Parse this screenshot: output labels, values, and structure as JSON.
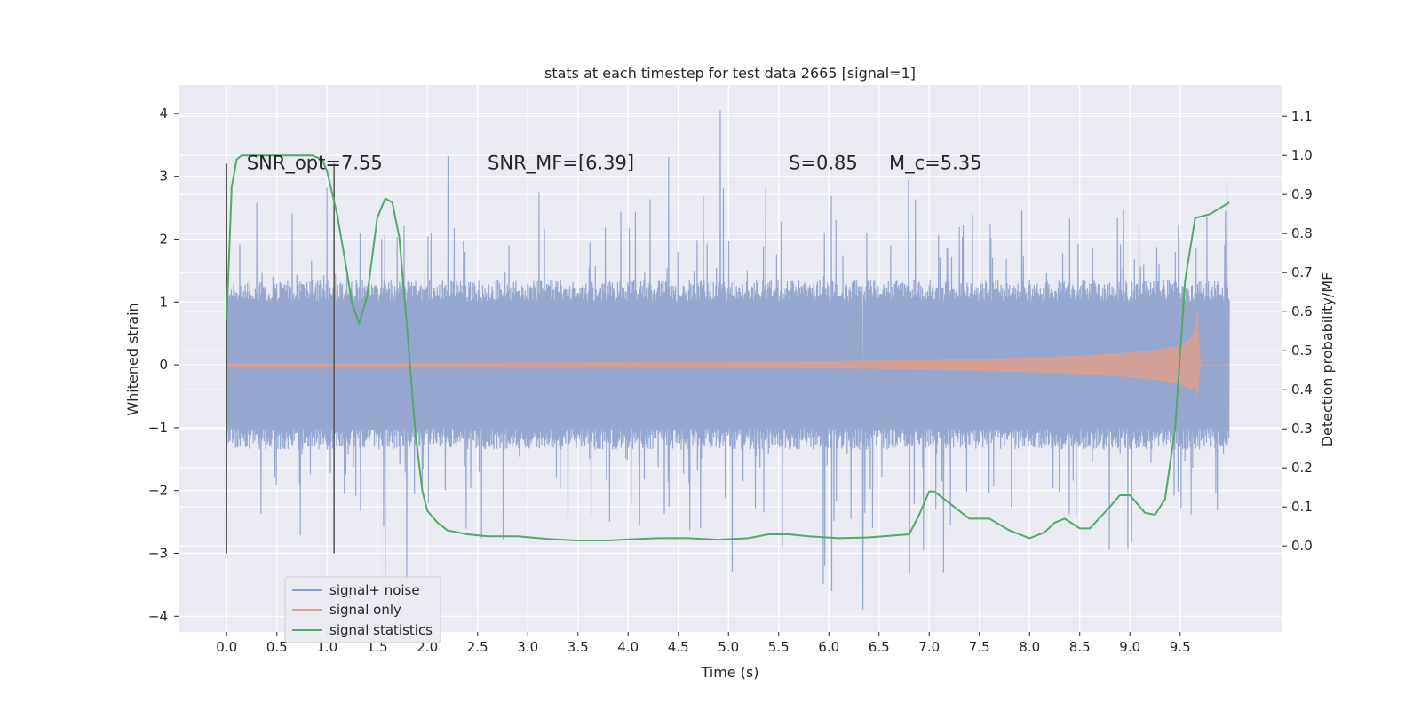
{
  "chart_data": {
    "type": "line",
    "title": "stats at each timestep for test data 2665 [signal=1]",
    "xlabel": "Time (s)",
    "ylabel": "Whitened strain",
    "y2label": "Detection probability/MF",
    "xlim": [
      -0.48,
      10.52
    ],
    "ylim": [
      -4.25,
      4.45
    ],
    "y2lim": [
      -0.22,
      1.18
    ],
    "xticks": [
      0.0,
      0.5,
      1.0,
      1.5,
      2.0,
      2.5,
      3.0,
      3.5,
      4.0,
      4.5,
      5.0,
      5.5,
      6.0,
      6.5,
      7.0,
      7.5,
      8.0,
      8.5,
      9.0,
      9.5
    ],
    "xtick_labels": [
      "0.0",
      "0.5",
      "1.0",
      "1.5",
      "2.0",
      "2.5",
      "3.0",
      "3.5",
      "4.0",
      "4.5",
      "5.0",
      "5.5",
      "6.0",
      "6.5",
      "7.0",
      "7.5",
      "8.0",
      "8.5",
      "9.0",
      "9.5"
    ],
    "yticks": [
      4,
      3,
      2,
      1,
      0,
      -1,
      -2,
      -3,
      -4
    ],
    "ytick_labels": [
      "4",
      "3",
      "2",
      "1",
      "0",
      "−1",
      "−2",
      "−3",
      "−4"
    ],
    "y2ticks": [
      1.1,
      1.0,
      0.9,
      0.8,
      0.7,
      0.6,
      0.5,
      0.4,
      0.3,
      0.2,
      0.1,
      0.0
    ],
    "y2tick_labels": [
      "1.1",
      "1.0",
      "0.9",
      "0.8",
      "0.7",
      "0.6",
      "0.5",
      "0.4",
      "0.3",
      "0.2",
      "0.1",
      "0.0"
    ],
    "grid": true,
    "legend_position": "lower-left",
    "annotations": [
      {
        "id": "snr-opt",
        "text": "SNR_opt=7.55",
        "x": 0.2,
        "y": 3.2
      },
      {
        "id": "snr-mf",
        "text": "SNR_MF=[6.39]",
        "x": 2.6,
        "y": 3.2
      },
      {
        "id": "s-value",
        "text": "S=0.85",
        "x": 5.6,
        "y": 3.2
      },
      {
        "id": "mc-value",
        "text": "M_c=5.35",
        "x": 6.6,
        "y": 3.2
      }
    ],
    "vertical_markers": [
      {
        "x": 0.0,
        "y_from": -3.0,
        "y_to": 3.2
      },
      {
        "x": 1.07,
        "y_from": -3.0,
        "y_to": 3.2
      }
    ],
    "series": [
      {
        "name": "signal+ noise",
        "color": "#8da0cb",
        "kind": "noise-band",
        "x_range": [
          0.0,
          9.99
        ],
        "band": [
          -1.35,
          1.35
        ],
        "spike_max": 4.05,
        "spike_min": -3.9
      },
      {
        "name": "signal only",
        "color": "#dd9f8e",
        "kind": "chirp-envelope",
        "x": [
          0.0,
          1.0,
          2.0,
          3.0,
          4.0,
          5.0,
          6.0,
          7.0,
          7.5,
          8.0,
          8.5,
          9.0,
          9.3,
          9.5,
          9.6,
          9.65,
          9.67,
          9.7,
          9.99
        ],
        "envelope": [
          0.02,
          0.02,
          0.025,
          0.03,
          0.035,
          0.04,
          0.05,
          0.07,
          0.09,
          0.11,
          0.14,
          0.19,
          0.24,
          0.3,
          0.4,
          0.55,
          0.85,
          0.0,
          0.0
        ]
      },
      {
        "name": "signal statistics",
        "color": "#55a868",
        "kind": "line",
        "x": [
          0.0,
          0.05,
          0.1,
          0.15,
          0.2,
          0.3,
          0.5,
          0.7,
          0.85,
          0.95,
          1.0,
          1.1,
          1.2,
          1.25,
          1.32,
          1.4,
          1.5,
          1.58,
          1.65,
          1.72,
          1.8,
          1.88,
          1.95,
          2.0,
          2.1,
          2.2,
          2.4,
          2.6,
          2.9,
          3.2,
          3.5,
          3.8,
          4.1,
          4.3,
          4.6,
          4.9,
          5.2,
          5.4,
          5.6,
          5.8,
          6.1,
          6.4,
          6.8,
          6.9,
          7.0,
          7.05,
          7.2,
          7.4,
          7.6,
          7.8,
          8.0,
          8.15,
          8.25,
          8.35,
          8.5,
          8.6,
          8.8,
          8.9,
          9.0,
          9.15,
          9.25,
          9.35,
          9.45,
          9.55,
          9.65,
          9.8,
          9.99
        ],
        "values": [
          0.58,
          0.92,
          0.99,
          1.0,
          1.0,
          1.0,
          1.0,
          1.0,
          1.0,
          0.99,
          0.96,
          0.85,
          0.7,
          0.62,
          0.57,
          0.64,
          0.84,
          0.89,
          0.88,
          0.79,
          0.55,
          0.29,
          0.14,
          0.09,
          0.06,
          0.04,
          0.03,
          0.025,
          0.025,
          0.018,
          0.014,
          0.014,
          0.018,
          0.02,
          0.02,
          0.016,
          0.02,
          0.03,
          0.03,
          0.025,
          0.02,
          0.022,
          0.03,
          0.08,
          0.14,
          0.14,
          0.11,
          0.07,
          0.07,
          0.04,
          0.02,
          0.035,
          0.06,
          0.07,
          0.045,
          0.045,
          0.1,
          0.13,
          0.13,
          0.085,
          0.08,
          0.12,
          0.3,
          0.68,
          0.84,
          0.85,
          0.88
        ]
      }
    ]
  }
}
